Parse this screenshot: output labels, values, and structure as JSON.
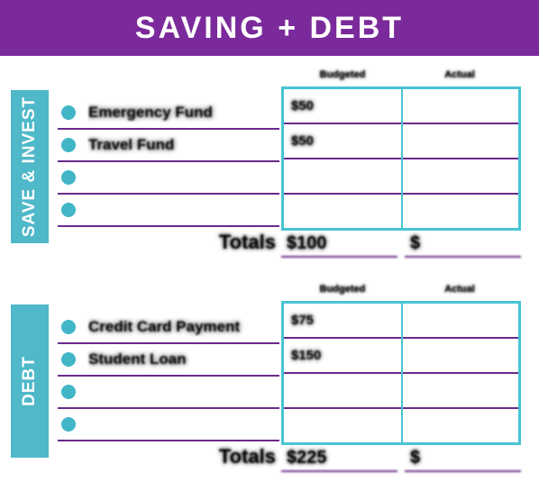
{
  "colors": {
    "banner_bg": "#7b2a9b",
    "tab_bg": "#4fb8c9",
    "bullet": "#42b6c6",
    "rule": "#6a2a8a",
    "grid_border": "#47c4d3",
    "text": "#000000",
    "white": "#ffffff"
  },
  "banner": {
    "title": "SAVING + DEBT"
  },
  "sections": [
    {
      "tab_label": "SAVE & INVEST",
      "headers": [
        "Budgeted",
        "Actual"
      ],
      "rows": [
        {
          "label": "Emergency Fund",
          "budgeted": "$50",
          "actual": ""
        },
        {
          "label": "Travel Fund",
          "budgeted": "$50",
          "actual": ""
        },
        {
          "label": "",
          "budgeted": "",
          "actual": ""
        },
        {
          "label": "",
          "budgeted": "",
          "actual": ""
        }
      ],
      "totals": {
        "label": "Totals",
        "budgeted": "$100",
        "actual": "$"
      }
    },
    {
      "tab_label": "DEBT",
      "headers": [
        "Budgeted",
        "Actual"
      ],
      "rows": [
        {
          "label": "Credit Card Payment",
          "budgeted": "$75",
          "actual": ""
        },
        {
          "label": "Student Loan",
          "budgeted": "$150",
          "actual": ""
        },
        {
          "label": "",
          "budgeted": "",
          "actual": ""
        },
        {
          "label": "",
          "budgeted": "",
          "actual": ""
        }
      ],
      "totals": {
        "label": "Totals",
        "budgeted": "$225",
        "actual": "$"
      }
    }
  ]
}
